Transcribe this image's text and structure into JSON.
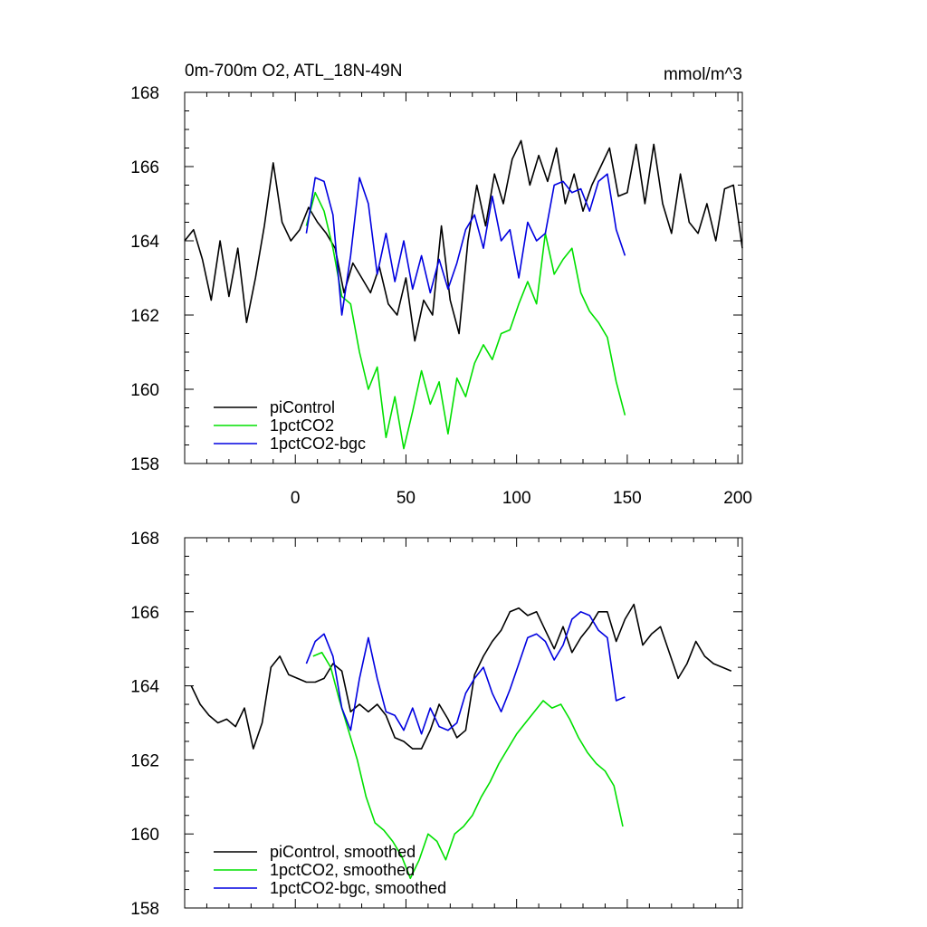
{
  "chart_data": [
    {
      "type": "line",
      "title": "0m-700m O2, ATL_18N-49N",
      "units": "mmol/m^3",
      "xlim": [
        -50,
        202
      ],
      "ylim": [
        158,
        168
      ],
      "xticks": [
        0,
        50,
        100,
        150,
        200
      ],
      "yticks": [
        158,
        160,
        162,
        164,
        166,
        168
      ],
      "legend_position": "bottom-left",
      "series": [
        {
          "name": "piControl",
          "color": "#000000",
          "x": [
            -50,
            -46,
            -42,
            -38,
            -34,
            -30,
            -26,
            -22,
            -18,
            -14,
            -10,
            -6,
            -2,
            2,
            6,
            10,
            14,
            18,
            22,
            26,
            30,
            34,
            38,
            42,
            46,
            50,
            54,
            58,
            62,
            66,
            70,
            74,
            78,
            82,
            86,
            90,
            94,
            98,
            102,
            106,
            110,
            114,
            118,
            122,
            126,
            130,
            134,
            138,
            142,
            146,
            150,
            154,
            158,
            162,
            166,
            170,
            174,
            178,
            182,
            186,
            190,
            194,
            198,
            202
          ],
          "values": [
            164.0,
            164.3,
            163.5,
            162.4,
            164.0,
            162.5,
            163.8,
            161.8,
            163.0,
            164.4,
            166.1,
            164.5,
            164.0,
            164.3,
            164.9,
            164.5,
            164.2,
            163.8,
            162.6,
            163.4,
            163.0,
            162.6,
            163.3,
            162.3,
            162.0,
            163.0,
            161.3,
            162.4,
            162.0,
            164.4,
            162.4,
            161.5,
            164.0,
            165.5,
            164.4,
            165.8,
            165.0,
            166.2,
            166.7,
            165.5,
            166.3,
            165.6,
            166.5,
            165.0,
            165.8,
            164.8,
            165.5,
            166.0,
            166.5,
            165.2,
            165.3,
            166.6,
            165.0,
            166.6,
            165.0,
            164.2,
            165.8,
            164.5,
            164.2,
            165.0,
            164.0,
            165.4,
            165.5,
            163.8
          ]
        },
        {
          "name": "1pctCO2",
          "color": "#00e000",
          "x": [
            5,
            9,
            13,
            17,
            21,
            25,
            29,
            33,
            37,
            41,
            45,
            49,
            53,
            57,
            61,
            65,
            69,
            73,
            77,
            81,
            85,
            89,
            93,
            97,
            101,
            105,
            109,
            113,
            117,
            121,
            125,
            129,
            133,
            137,
            141,
            145,
            149
          ],
          "values": [
            164.4,
            165.3,
            164.8,
            163.8,
            162.5,
            162.3,
            161.0,
            160.0,
            160.6,
            158.7,
            159.8,
            158.4,
            159.4,
            160.5,
            159.6,
            160.2,
            158.8,
            160.3,
            159.8,
            160.7,
            161.2,
            160.8,
            161.5,
            161.6,
            162.3,
            162.9,
            162.3,
            164.2,
            163.1,
            163.5,
            163.8,
            162.6,
            162.1,
            161.8,
            161.4,
            160.2,
            159.3
          ]
        },
        {
          "name": "1pctCO2-bgc",
          "color": "#0000e0",
          "x": [
            5,
            9,
            13,
            17,
            21,
            25,
            29,
            33,
            37,
            41,
            45,
            49,
            53,
            57,
            61,
            65,
            69,
            73,
            77,
            81,
            85,
            89,
            93,
            97,
            101,
            105,
            109,
            113,
            117,
            121,
            125,
            129,
            133,
            137,
            141,
            145,
            149
          ],
          "values": [
            164.2,
            165.7,
            165.6,
            164.7,
            162.0,
            163.6,
            165.7,
            165.0,
            163.1,
            164.2,
            162.9,
            164.0,
            162.7,
            163.6,
            162.6,
            163.5,
            162.7,
            163.4,
            164.3,
            164.7,
            163.8,
            165.2,
            164.0,
            164.3,
            163.0,
            164.5,
            164.0,
            164.2,
            165.5,
            165.6,
            165.3,
            165.4,
            164.8,
            165.6,
            165.8,
            164.3,
            163.6
          ]
        }
      ]
    },
    {
      "type": "line",
      "xlim": [
        -50,
        202
      ],
      "ylim": [
        158,
        168
      ],
      "yticks": [
        158,
        160,
        162,
        164,
        166,
        168
      ],
      "legend_position": "bottom-left",
      "series": [
        {
          "name": "piControl, smoothed",
          "color": "#000000",
          "x": [
            -47,
            -43,
            -39,
            -35,
            -31,
            -27,
            -23,
            -19,
            -15,
            -11,
            -7,
            -3,
            1,
            5,
            9,
            13,
            17,
            21,
            25,
            29,
            33,
            37,
            41,
            45,
            49,
            53,
            57,
            61,
            65,
            69,
            73,
            77,
            81,
            85,
            89,
            93,
            97,
            101,
            105,
            109,
            113,
            117,
            121,
            125,
            129,
            133,
            137,
            141,
            145,
            149,
            153,
            157,
            161,
            165,
            169,
            173,
            177,
            181,
            185,
            189,
            193,
            197
          ],
          "values": [
            164.0,
            163.5,
            163.2,
            163.0,
            163.1,
            162.9,
            163.4,
            162.3,
            163.0,
            164.5,
            164.8,
            164.3,
            164.2,
            164.1,
            164.1,
            164.2,
            164.6,
            164.4,
            163.3,
            163.5,
            163.3,
            163.5,
            163.2,
            162.6,
            162.5,
            162.3,
            162.3,
            162.8,
            163.5,
            163.1,
            162.6,
            162.8,
            164.3,
            164.8,
            165.2,
            165.5,
            166.0,
            166.1,
            165.9,
            166.0,
            165.5,
            165.0,
            165.6,
            164.9,
            165.3,
            165.6,
            166.0,
            166.0,
            165.2,
            165.8,
            166.2,
            165.1,
            165.4,
            165.6,
            164.9,
            164.2,
            164.6,
            165.2,
            164.8,
            164.6,
            164.5,
            164.4
          ]
        },
        {
          "name": "1pctCO2, smoothed",
          "color": "#00e000",
          "x": [
            8,
            12,
            16,
            20,
            24,
            28,
            32,
            36,
            40,
            44,
            48,
            52,
            56,
            60,
            64,
            68,
            72,
            76,
            80,
            84,
            88,
            92,
            96,
            100,
            104,
            108,
            112,
            116,
            120,
            124,
            128,
            132,
            136,
            140,
            144,
            148
          ],
          "values": [
            164.8,
            164.9,
            164.5,
            163.6,
            162.8,
            162.0,
            161.0,
            160.3,
            160.1,
            159.8,
            159.4,
            158.8,
            159.3,
            160.0,
            159.8,
            159.3,
            160.0,
            160.2,
            160.5,
            161.0,
            161.4,
            161.9,
            162.3,
            162.7,
            163.0,
            163.3,
            163.6,
            163.4,
            163.5,
            163.1,
            162.6,
            162.2,
            161.9,
            161.7,
            161.3,
            160.2
          ]
        },
        {
          "name": "1pctCO2-bgc, smoothed",
          "color": "#0000e0",
          "x": [
            5,
            9,
            13,
            17,
            21,
            25,
            29,
            33,
            37,
            41,
            45,
            49,
            53,
            57,
            61,
            65,
            69,
            73,
            77,
            81,
            85,
            89,
            93,
            97,
            101,
            105,
            109,
            113,
            117,
            121,
            125,
            129,
            133,
            137,
            141,
            145,
            149
          ],
          "values": [
            164.6,
            165.2,
            165.4,
            164.8,
            163.4,
            162.8,
            164.2,
            165.3,
            164.2,
            163.3,
            163.2,
            162.8,
            163.4,
            162.7,
            163.4,
            162.9,
            162.8,
            163.0,
            163.8,
            164.2,
            164.5,
            163.8,
            163.3,
            163.9,
            164.6,
            165.3,
            165.4,
            165.2,
            164.7,
            165.1,
            165.8,
            166.0,
            165.9,
            165.5,
            165.3,
            163.6,
            163.7
          ]
        }
      ]
    }
  ]
}
